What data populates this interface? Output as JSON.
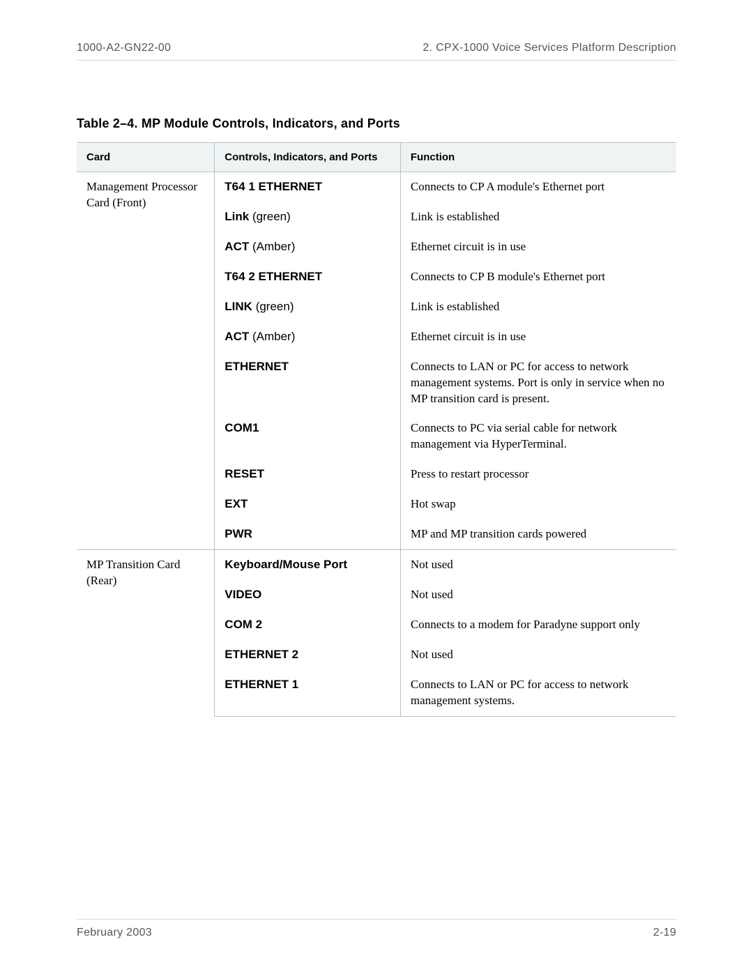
{
  "header": {
    "left": "1000-A2-GN22-00",
    "right": "2. CPX-1000 Voice Services Platform Description"
  },
  "table_title": "Table 2–4.  MP Module Controls, Indicators, and Ports",
  "columns": {
    "card": "Card",
    "controls": "Controls, Indicators, and Ports",
    "function": "Function"
  },
  "groups": [
    {
      "card": "Management Processor Card (Front)",
      "rows": [
        {
          "ctrl": "T64 1 ETHERNET",
          "paren": "",
          "func": "Connects to CP A module's Ethernet port"
        },
        {
          "ctrl": "Link",
          "paren": " (green)",
          "func": "Link is established"
        },
        {
          "ctrl": "ACT",
          "paren": " (Amber)",
          "func": "Ethernet circuit is in use"
        },
        {
          "ctrl": "T64 2 ETHERNET",
          "paren": "",
          "func": "Connects to CP B module's Ethernet port"
        },
        {
          "ctrl": "LINK",
          "paren": " (green)",
          "func": "Link is established"
        },
        {
          "ctrl": "ACT",
          "paren": " (Amber)",
          "func": "Ethernet circuit is in use"
        },
        {
          "ctrl": "ETHERNET",
          "paren": "",
          "func": "Connects to LAN or PC for access to network management systems. Port is only in service when no MP transition card is present."
        },
        {
          "ctrl": "COM1",
          "paren": "",
          "func": "Connects to PC via serial cable for network management via HyperTerminal."
        },
        {
          "ctrl": "RESET",
          "paren": "",
          "func": "Press to restart processor"
        },
        {
          "ctrl": "EXT",
          "paren": "",
          "func": "Hot swap"
        },
        {
          "ctrl": "PWR",
          "paren": "",
          "func": "MP and MP transition cards powered"
        }
      ]
    },
    {
      "card": "MP Transition Card (Rear)",
      "rows": [
        {
          "ctrl": "Keyboard/Mouse Port",
          "paren": "",
          "func": "Not used"
        },
        {
          "ctrl": "VIDEO",
          "paren": "",
          "func": "Not used"
        },
        {
          "ctrl": "COM 2",
          "paren": "",
          "func": "Connects to a modem for Paradyne support only"
        },
        {
          "ctrl": "ETHERNET 2",
          "paren": "",
          "func": "Not used"
        },
        {
          "ctrl": "ETHERNET 1",
          "paren": "",
          "func": "Connects to LAN or PC for access to network management systems."
        }
      ]
    }
  ],
  "footer": {
    "left": "February 2003",
    "right": "2-19"
  }
}
